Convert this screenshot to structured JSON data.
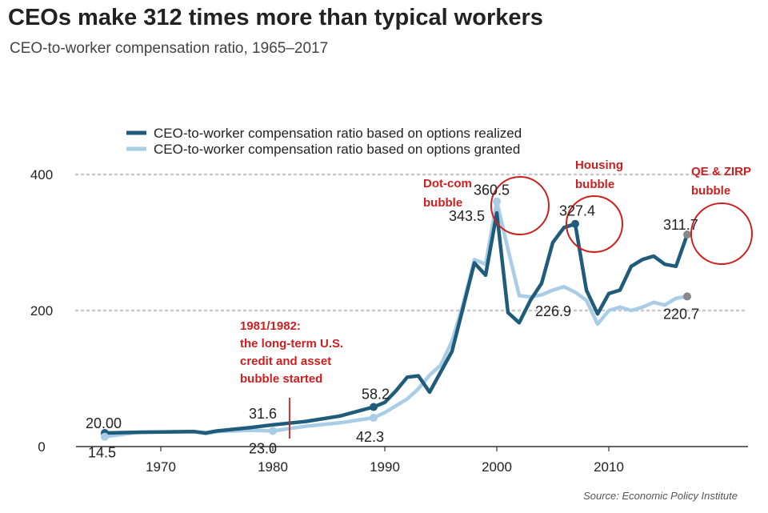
{
  "title": "CEOs make 312 times more than typical workers",
  "subtitle": "CEO-to-worker compensation ratio, 1965–2017",
  "source": "Source: Economic Policy Institute",
  "colors": {
    "realized": "#1f5b7a",
    "granted": "#a9cde6",
    "annotation": "#cc1f1f",
    "end_marker": "#888888"
  },
  "chart_data": {
    "type": "line",
    "xlim": [
      1964,
      2022
    ],
    "ylim": [
      0,
      420
    ],
    "x_ticks": [
      1970,
      1980,
      1990,
      2000,
      2010
    ],
    "y_ticks": [
      0,
      200,
      400
    ],
    "grid": "horizontal dotted at 200 and 400",
    "legend_position": "top",
    "series": [
      {
        "name": "CEO-to-worker compensation ratio based on options realized",
        "color": "#1f5b7a",
        "points": [
          [
            1965,
            20.0
          ],
          [
            1968,
            21
          ],
          [
            1973,
            22
          ],
          [
            1974,
            20
          ],
          [
            1975,
            23
          ],
          [
            1978,
            28
          ],
          [
            1980,
            32
          ],
          [
            1983,
            37
          ],
          [
            1986,
            45
          ],
          [
            1989,
            58.2
          ],
          [
            1990,
            65
          ],
          [
            1991,
            82
          ],
          [
            1992,
            102
          ],
          [
            1993,
            104
          ],
          [
            1994,
            80
          ],
          [
            1995,
            110
          ],
          [
            1996,
            140
          ],
          [
            1997,
            205
          ],
          [
            1998,
            270
          ],
          [
            1999,
            252
          ],
          [
            2000,
            343.5
          ],
          [
            2001,
            197
          ],
          [
            2002,
            182
          ],
          [
            2003,
            215
          ],
          [
            2004,
            240
          ],
          [
            2005,
            300
          ],
          [
            2006,
            322
          ],
          [
            2007,
            327.4
          ],
          [
            2008,
            230
          ],
          [
            2009,
            195
          ],
          [
            2010,
            225
          ],
          [
            2011,
            230
          ],
          [
            2012,
            265
          ],
          [
            2013,
            275
          ],
          [
            2014,
            280
          ],
          [
            2015,
            268
          ],
          [
            2016,
            265
          ],
          [
            2017,
            311.7
          ]
        ]
      },
      {
        "name": "CEO-to-worker compensation ratio based on options granted",
        "color": "#a9cde6",
        "points": [
          [
            1965,
            14.5
          ],
          [
            1968,
            21
          ],
          [
            1973,
            22
          ],
          [
            1974,
            19
          ],
          [
            1975,
            22
          ],
          [
            1978,
            24
          ],
          [
            1980,
            23.0
          ],
          [
            1983,
            30
          ],
          [
            1986,
            35
          ],
          [
            1989,
            42.3
          ],
          [
            1990,
            50
          ],
          [
            1992,
            70
          ],
          [
            1993,
            85
          ],
          [
            1994,
            105
          ],
          [
            1995,
            120
          ],
          [
            1996,
            155
          ],
          [
            1997,
            210
          ],
          [
            1998,
            275
          ],
          [
            1999,
            268
          ],
          [
            2000,
            360.5
          ],
          [
            2001,
            290
          ],
          [
            2002,
            222
          ],
          [
            2003,
            220
          ],
          [
            2004,
            223
          ],
          [
            2005,
            230
          ],
          [
            2006,
            235
          ],
          [
            2007,
            226.9
          ],
          [
            2008,
            215
          ],
          [
            2009,
            180
          ],
          [
            2010,
            200
          ],
          [
            2011,
            205
          ],
          [
            2012,
            200
          ],
          [
            2013,
            205
          ],
          [
            2014,
            212
          ],
          [
            2015,
            208
          ],
          [
            2016,
            218
          ],
          [
            2017,
            220.7
          ]
        ]
      }
    ],
    "data_labels": [
      {
        "text": "20.00",
        "x": 1965,
        "y": 20.0
      },
      {
        "text": "14.5",
        "x": 1965,
        "y": 14.5
      },
      {
        "text": "31.6",
        "x": 1979,
        "y": 31.6
      },
      {
        "text": "23.0",
        "x": 1980,
        "y": 23.0
      },
      {
        "text": "58.2",
        "x": 1989,
        "y": 58.2
      },
      {
        "text": "42.3",
        "x": 1989,
        "y": 42.3
      },
      {
        "text": "343.5",
        "x": 2000,
        "y": 343.5
      },
      {
        "text": "360.5",
        "x": 2000,
        "y": 360.5
      },
      {
        "text": "327.4",
        "x": 2007,
        "y": 327.4
      },
      {
        "text": "226.9",
        "x": 2007,
        "y": 226.9
      },
      {
        "text": "311.7",
        "x": 2017,
        "y": 311.7
      },
      {
        "text": "220.7",
        "x": 2017,
        "y": 220.7
      }
    ],
    "annotations": [
      {
        "lines": [
          "1981/1982:",
          "the long-term U.S.",
          "credit and asset",
          "bubble started"
        ],
        "x": 1981.5
      },
      {
        "lines": [
          "Dot-com",
          "bubble"
        ],
        "x": 2000
      },
      {
        "lines": [
          "Housing",
          "bubble"
        ],
        "x": 2007
      },
      {
        "lines": [
          "QE & ZIRP",
          "bubble"
        ],
        "x": 2017
      }
    ]
  }
}
